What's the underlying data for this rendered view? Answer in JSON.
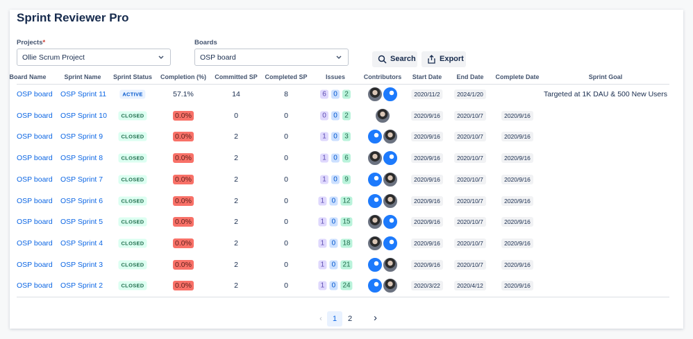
{
  "header": {
    "title": "Sprint Reviewer Pro"
  },
  "filters": {
    "projects_label": "Projects",
    "required_mark": "*",
    "project_value": "Ollie Scrum Project",
    "boards_label": "Boards",
    "board_value": "OSP board"
  },
  "buttons": {
    "search": "Search",
    "export": "Export"
  },
  "table": {
    "columns": [
      "Board Name",
      "Sprint Name",
      "Sprint Status",
      "Completion (%)",
      "Committed SP",
      "Completed SP",
      "Issues",
      "Contributors",
      "Start Date",
      "End Date",
      "Complete Date",
      "Sprint Goal"
    ],
    "rows": [
      {
        "board": "OSP board",
        "sprint": "OSP Sprint 11",
        "status": "ACTIVE",
        "completion": "57.1%",
        "committed": "14",
        "completed": "8",
        "issues": [
          "6",
          "0",
          "2"
        ],
        "start": "2020/11/2",
        "end": "2024/1/20",
        "goal": "Targeted at 1K DAU & 500 New Users"
      },
      {
        "board": "OSP board",
        "sprint": "OSP Sprint 10",
        "status": "CLOSED",
        "completion": "0.0%",
        "committed": "0",
        "completed": "0",
        "issues": [
          "0",
          "0",
          "2"
        ],
        "start": "2020/9/16",
        "end": "2020/10/7",
        "complete": "2020/9/16"
      },
      {
        "board": "OSP board",
        "sprint": "OSP Sprint 9",
        "status": "CLOSED",
        "completion": "0.0%",
        "committed": "2",
        "completed": "0",
        "issues": [
          "1",
          "0",
          "3"
        ],
        "start": "2020/9/16",
        "end": "2020/10/7",
        "complete": "2020/9/16"
      },
      {
        "board": "OSP board",
        "sprint": "OSP Sprint 8",
        "status": "CLOSED",
        "completion": "0.0%",
        "committed": "2",
        "completed": "0",
        "issues": [
          "1",
          "0",
          "6"
        ],
        "start": "2020/9/16",
        "end": "2020/10/7",
        "complete": "2020/9/16"
      },
      {
        "board": "OSP board",
        "sprint": "OSP Sprint 7",
        "status": "CLOSED",
        "completion": "0.0%",
        "committed": "2",
        "completed": "0",
        "issues": [
          "1",
          "0",
          "9"
        ],
        "start": "2020/9/16",
        "end": "2020/10/7",
        "complete": "2020/9/16"
      },
      {
        "board": "OSP board",
        "sprint": "OSP Sprint 6",
        "status": "CLOSED",
        "completion": "0.0%",
        "committed": "2",
        "completed": "0",
        "issues": [
          "1",
          "0",
          "12"
        ],
        "start": "2020/9/16",
        "end": "2020/10/7",
        "complete": "2020/9/16"
      },
      {
        "board": "OSP board",
        "sprint": "OSP Sprint 5",
        "status": "CLOSED",
        "completion": "0.0%",
        "committed": "2",
        "completed": "0",
        "issues": [
          "1",
          "0",
          "15"
        ],
        "start": "2020/9/16",
        "end": "2020/10/7",
        "complete": "2020/9/16"
      },
      {
        "board": "OSP board",
        "sprint": "OSP Sprint 4",
        "status": "CLOSED",
        "completion": "0.0%",
        "committed": "2",
        "completed": "0",
        "issues": [
          "1",
          "0",
          "18"
        ],
        "start": "2020/9/16",
        "end": "2020/10/7",
        "complete": "2020/9/16"
      },
      {
        "board": "OSP board",
        "sprint": "OSP Sprint 3",
        "status": "CLOSED",
        "completion": "0.0%",
        "committed": "2",
        "completed": "0",
        "issues": [
          "1",
          "0",
          "21"
        ],
        "start": "2020/9/16",
        "end": "2020/10/7",
        "complete": "2020/9/16"
      },
      {
        "board": "OSP board",
        "sprint": "OSP Sprint 2",
        "status": "CLOSED",
        "completion": "0.0%",
        "committed": "2",
        "completed": "0",
        "issues": [
          "1",
          "0",
          "24"
        ],
        "start": "2020/3/22",
        "end": "2020/4/12",
        "complete": "2020/9/16"
      }
    ]
  },
  "pagination": {
    "pages": [
      "1",
      "2"
    ]
  }
}
